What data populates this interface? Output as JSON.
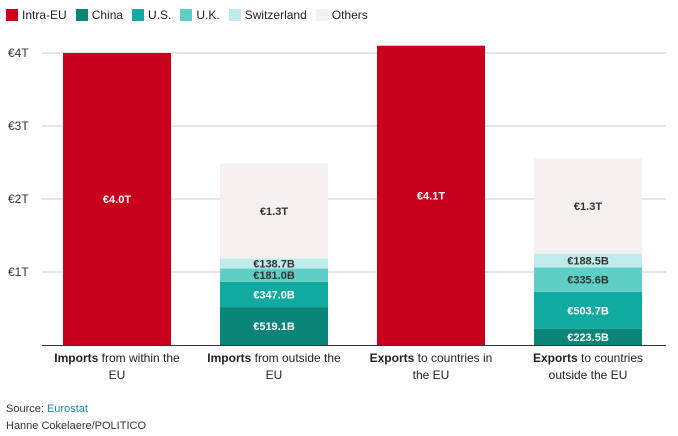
{
  "chart_data": {
    "type": "stacked-bar",
    "y_ticks": [
      "€1T",
      "€2T",
      "€3T",
      "€4T"
    ],
    "ylim": [
      0,
      4.0
    ],
    "grid": true,
    "legend_position": "top-left",
    "series": [
      {
        "name": "Intra-EU",
        "color": "#c8001e"
      },
      {
        "name": "China",
        "color": "#0b8577"
      },
      {
        "name": "U.S.",
        "color": "#10aaa0"
      },
      {
        "name": "U.K.",
        "color": "#5fcfc6"
      },
      {
        "name": "Switzerland",
        "color": "#bfeceb"
      },
      {
        "name": "Others",
        "color": "#f5f1f1"
      }
    ],
    "bars": [
      {
        "category_bold": "Imports",
        "category_rest": " from within the",
        "category_line2": "EU",
        "segments": [
          {
            "series": "Intra-EU",
            "value": 4.0,
            "label": "€4.0T",
            "label_color": "#ffffff"
          }
        ]
      },
      {
        "category_bold": "Imports",
        "category_rest": " from outside the",
        "category_line2": "EU",
        "segments": [
          {
            "series": "China",
            "value": 0.5191,
            "label": "€519.1B",
            "label_color": "#ffffff"
          },
          {
            "series": "U.S.",
            "value": 0.347,
            "label": "€347.0B",
            "label_color": "#ffffff"
          },
          {
            "series": "U.K.",
            "value": 0.181,
            "label": "€181.0B",
            "label_color": "#333333"
          },
          {
            "series": "Switzerland",
            "value": 0.1387,
            "label": "€138.7B",
            "label_color": "#333333"
          },
          {
            "series": "Others",
            "value": 1.3,
            "label": "€1.3T",
            "label_color": "#333333"
          }
        ]
      },
      {
        "category_bold": "Exports",
        "category_rest": " to countries in",
        "category_line2": "the EU",
        "segments": [
          {
            "series": "Intra-EU",
            "value": 4.1,
            "label": "€4.1T",
            "label_color": "#ffffff"
          }
        ]
      },
      {
        "category_bold": "Exports",
        "category_rest": " to countries",
        "category_line2": "outside the EU",
        "segments": [
          {
            "series": "China",
            "value": 0.2235,
            "label": "€223.5B",
            "label_color": "#ffffff"
          },
          {
            "series": "U.S.",
            "value": 0.5037,
            "label": "€503.7B",
            "label_color": "#ffffff"
          },
          {
            "series": "U.K.",
            "value": 0.3356,
            "label": "€335.6B",
            "label_color": "#333333"
          },
          {
            "series": "Switzerland",
            "value": 0.1885,
            "label": "€188.5B",
            "label_color": "#333333"
          },
          {
            "series": "Others",
            "value": 1.3,
            "label": "€1.3T",
            "label_color": "#333333"
          }
        ]
      }
    ]
  },
  "footer": {
    "source_prefix": "Source: ",
    "source_link": "Eurostat",
    "credit": "Hanne Cokelaere/POLITICO"
  }
}
